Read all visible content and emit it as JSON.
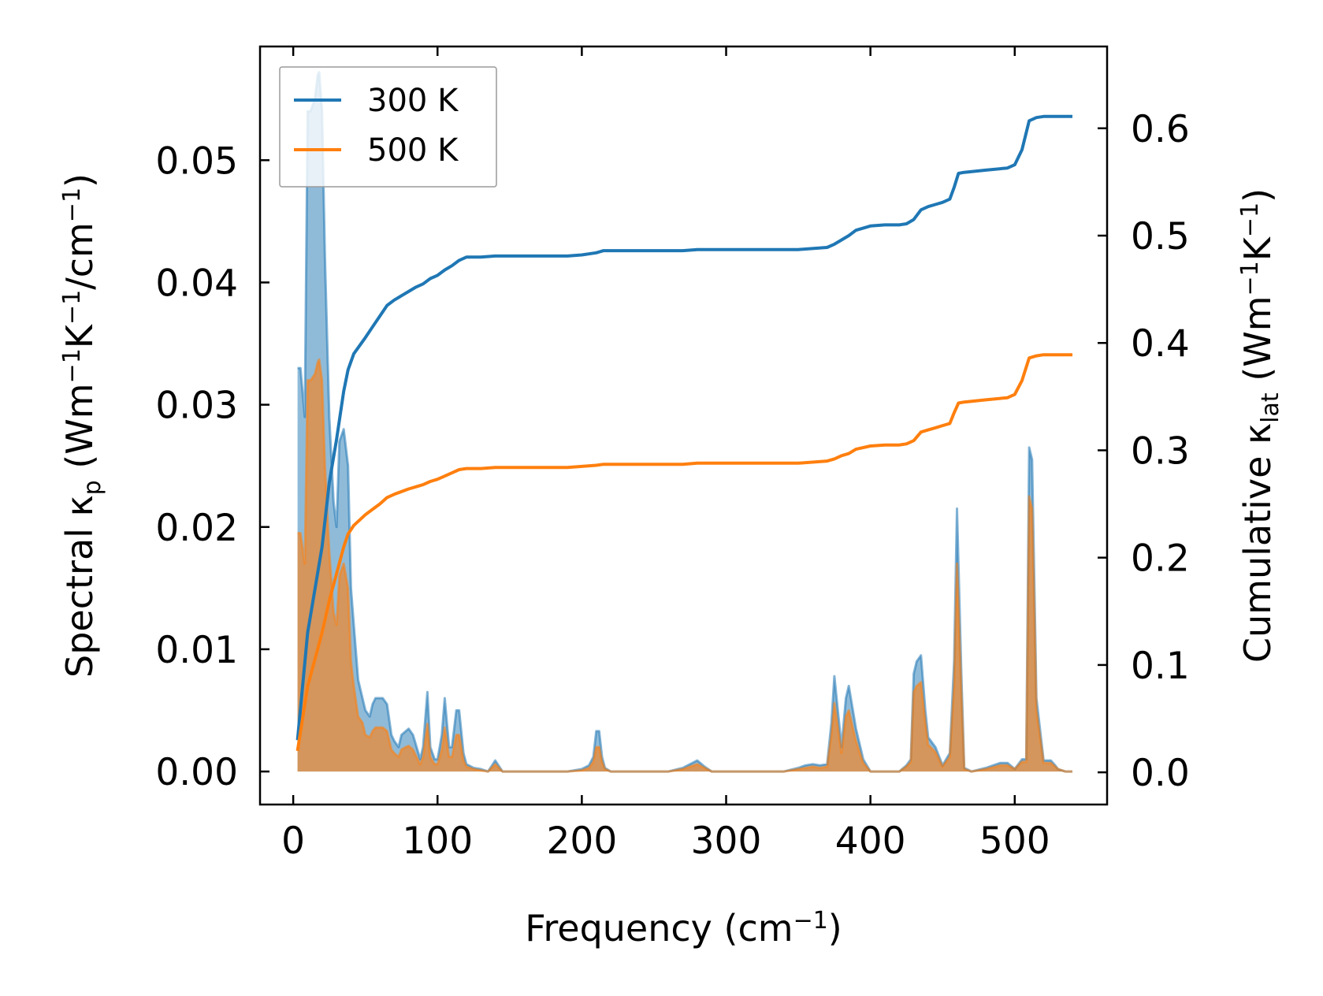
{
  "chart_data": {
    "type": "line",
    "title": "",
    "xlabel": "Frequency (cm",
    "xlabel_sup": "−1",
    "xlabel_end": ")",
    "ylabel_left_parts": [
      "Spectral κ",
      "p",
      " (Wm",
      "−1",
      "K",
      "−1",
      "/cm",
      "−1",
      ")"
    ],
    "ylabel_right_parts": [
      "Cumulative κ",
      "lat",
      " (Wm",
      "−1",
      "K",
      "−1",
      ")"
    ],
    "xlim": [
      -23,
      564
    ],
    "ylim_left": [
      -0.0027,
      0.0593
    ],
    "ylim_right": [
      -0.03,
      0.6762
    ],
    "xticks": [
      0,
      100,
      200,
      300,
      400,
      500
    ],
    "xtick_labels": [
      "0",
      "100",
      "200",
      "300",
      "400",
      "500"
    ],
    "yticks_left": [
      0.0,
      0.01,
      0.02,
      0.03,
      0.04,
      0.05
    ],
    "ytick_left_labels": [
      "0.00",
      "0.01",
      "0.02",
      "0.03",
      "0.04",
      "0.05"
    ],
    "yticks_right": [
      0.0,
      0.1,
      0.2,
      0.3,
      0.4,
      0.5,
      0.6
    ],
    "ytick_right_labels": [
      "0.0",
      "0.1",
      "0.2",
      "0.3",
      "0.4",
      "0.5",
      "0.6"
    ],
    "legend": {
      "position": "top-left",
      "entries": [
        "300 K",
        "500 K"
      ]
    },
    "colors": {
      "300K": "#1f77b4",
      "500K": "#ff7f0e",
      "overlap_fill": "#c49a6c"
    },
    "series_spectral": [
      {
        "name": "300 K",
        "axis": "left",
        "x": [
          3,
          5,
          8,
          10,
          12,
          15,
          17,
          18,
          20,
          22,
          25,
          28,
          30,
          32,
          35,
          38,
          40,
          42,
          45,
          48,
          50,
          53,
          55,
          57,
          60,
          62,
          65,
          68,
          70,
          73,
          75,
          78,
          80,
          83,
          85,
          88,
          90,
          93,
          95,
          98,
          100,
          103,
          105,
          108,
          110,
          113,
          115,
          118,
          120,
          125,
          130,
          135,
          140,
          145,
          150,
          160,
          170,
          180,
          190,
          200,
          205,
          208,
          210,
          212,
          214,
          216,
          220,
          230,
          240,
          250,
          260,
          270,
          275,
          280,
          285,
          290,
          300,
          320,
          340,
          350,
          355,
          360,
          365,
          370,
          373,
          375,
          377,
          380,
          383,
          385,
          390,
          395,
          400,
          410,
          420,
          425,
          428,
          430,
          432,
          435,
          438,
          440,
          445,
          450,
          455,
          458,
          460,
          463,
          465,
          470,
          480,
          490,
          495,
          500,
          505,
          508,
          510,
          512,
          515,
          520,
          525,
          528,
          530,
          535,
          540
        ],
        "y": [
          0.033,
          0.033,
          0.029,
          0.054,
          0.054,
          0.055,
          0.057,
          0.0572,
          0.054,
          0.042,
          0.029,
          0.022,
          0.02,
          0.027,
          0.028,
          0.025,
          0.015,
          0.012,
          0.0075,
          0.006,
          0.005,
          0.0045,
          0.0055,
          0.006,
          0.006,
          0.006,
          0.0055,
          0.003,
          0.0025,
          0.002,
          0.003,
          0.0033,
          0.0035,
          0.003,
          0.0022,
          0.001,
          0.002,
          0.0065,
          0.002,
          0.001,
          0.001,
          0.003,
          0.006,
          0.002,
          0.002,
          0.005,
          0.005,
          0.0015,
          0.0006,
          0.0003,
          0.0002,
          0.0,
          0.0009,
          0.0,
          0.0,
          0.0,
          0.0,
          0.0,
          0.0,
          0.0002,
          0.0005,
          0.0012,
          0.0033,
          0.0033,
          0.0012,
          0.0003,
          0.0,
          0.0,
          0.0,
          0.0,
          0.0,
          0.0003,
          0.0006,
          0.0009,
          0.0004,
          0.0,
          0.0,
          0.0,
          0.0,
          0.0003,
          0.0005,
          0.0006,
          0.0005,
          0.0006,
          0.004,
          0.0078,
          0.0055,
          0.002,
          0.006,
          0.007,
          0.0035,
          0.001,
          0.0,
          0.0,
          0.0,
          0.0005,
          0.001,
          0.008,
          0.009,
          0.0095,
          0.005,
          0.0028,
          0.002,
          0.0005,
          0.0015,
          0.009,
          0.0215,
          0.008,
          0.0003,
          0.0,
          0.0003,
          0.0007,
          0.0007,
          0.0002,
          0.001,
          0.001,
          0.0265,
          0.0255,
          0.006,
          0.0009,
          0.0009,
          0.0005,
          0.0002,
          0.0,
          0.0
        ]
      },
      {
        "name": "500 K",
        "axis": "left",
        "x": [
          3,
          5,
          8,
          10,
          12,
          15,
          17,
          18,
          20,
          22,
          25,
          28,
          30,
          32,
          35,
          38,
          40,
          42,
          45,
          48,
          50,
          53,
          55,
          57,
          60,
          62,
          65,
          68,
          70,
          73,
          75,
          78,
          80,
          83,
          85,
          88,
          90,
          93,
          95,
          98,
          100,
          103,
          105,
          108,
          110,
          113,
          115,
          118,
          120,
          125,
          130,
          135,
          140,
          145,
          150,
          160,
          170,
          180,
          190,
          200,
          205,
          208,
          210,
          212,
          214,
          216,
          220,
          230,
          240,
          250,
          260,
          270,
          275,
          280,
          285,
          290,
          300,
          320,
          340,
          350,
          355,
          360,
          365,
          370,
          373,
          375,
          377,
          380,
          383,
          385,
          390,
          395,
          400,
          410,
          420,
          425,
          428,
          430,
          432,
          435,
          438,
          440,
          445,
          450,
          455,
          458,
          460,
          463,
          465,
          470,
          480,
          490,
          495,
          500,
          505,
          508,
          510,
          512,
          515,
          520,
          525,
          528,
          530,
          535,
          540
        ],
        "y": [
          0.0195,
          0.0195,
          0.017,
          0.032,
          0.032,
          0.0325,
          0.0335,
          0.0337,
          0.032,
          0.025,
          0.018,
          0.013,
          0.012,
          0.016,
          0.017,
          0.015,
          0.009,
          0.007,
          0.0045,
          0.004,
          0.003,
          0.0028,
          0.0033,
          0.0036,
          0.0036,
          0.0036,
          0.0033,
          0.0018,
          0.0015,
          0.0012,
          0.0018,
          0.002,
          0.0021,
          0.0018,
          0.0013,
          0.0006,
          0.0012,
          0.0039,
          0.0012,
          0.0006,
          0.0006,
          0.0018,
          0.0036,
          0.0012,
          0.0012,
          0.003,
          0.003,
          0.0009,
          0.0004,
          0.0002,
          0.0001,
          0.0,
          0.0006,
          0.0,
          0.0,
          0.0,
          0.0,
          0.0,
          0.0,
          0.0001,
          0.0003,
          0.0008,
          0.002,
          0.002,
          0.0008,
          0.0002,
          0.0,
          0.0,
          0.0,
          0.0,
          0.0,
          0.0002,
          0.0004,
          0.0006,
          0.0003,
          0.0,
          0.0,
          0.0,
          0.0,
          0.0002,
          0.0003,
          0.0004,
          0.0003,
          0.0004,
          0.003,
          0.0056,
          0.004,
          0.0015,
          0.0045,
          0.005,
          0.0025,
          0.0007,
          0.0,
          0.0,
          0.0,
          0.0004,
          0.0008,
          0.0065,
          0.007,
          0.0073,
          0.004,
          0.0022,
          0.0016,
          0.0004,
          0.0012,
          0.007,
          0.017,
          0.0065,
          0.0002,
          0.0,
          0.0002,
          0.0005,
          0.0005,
          0.0002,
          0.0008,
          0.0008,
          0.0225,
          0.0215,
          0.005,
          0.0007,
          0.0007,
          0.0004,
          0.0002,
          0.0,
          0.0
        ]
      }
    ],
    "series_cumulative": [
      {
        "name": "300 K",
        "axis": "right",
        "x": [
          3,
          10,
          20,
          25,
          30,
          35,
          38,
          42,
          50,
          55,
          60,
          65,
          70,
          80,
          85,
          90,
          95,
          100,
          105,
          110,
          115,
          120,
          130,
          140,
          150,
          170,
          190,
          200,
          210,
          215,
          250,
          270,
          280,
          300,
          350,
          370,
          375,
          380,
          385,
          390,
          400,
          410,
          420,
          425,
          430,
          435,
          440,
          445,
          450,
          455,
          458,
          461,
          465,
          480,
          495,
          500,
          505,
          510,
          515,
          520,
          530,
          540
        ],
        "y": [
          0.03,
          0.13,
          0.21,
          0.27,
          0.31,
          0.355,
          0.375,
          0.39,
          0.405,
          0.415,
          0.425,
          0.435,
          0.44,
          0.448,
          0.452,
          0.455,
          0.46,
          0.463,
          0.468,
          0.472,
          0.477,
          0.48,
          0.48,
          0.481,
          0.481,
          0.481,
          0.481,
          0.482,
          0.484,
          0.486,
          0.486,
          0.486,
          0.487,
          0.487,
          0.487,
          0.489,
          0.492,
          0.496,
          0.5,
          0.505,
          0.509,
          0.51,
          0.51,
          0.511,
          0.515,
          0.524,
          0.527,
          0.529,
          0.531,
          0.534,
          0.545,
          0.558,
          0.559,
          0.561,
          0.563,
          0.566,
          0.58,
          0.607,
          0.61,
          0.611,
          0.611,
          0.611
        ]
      },
      {
        "name": "500 K",
        "axis": "right",
        "x": [
          3,
          10,
          20,
          25,
          30,
          35,
          38,
          42,
          50,
          55,
          60,
          65,
          70,
          80,
          85,
          90,
          95,
          100,
          105,
          110,
          115,
          120,
          130,
          140,
          150,
          170,
          190,
          200,
          210,
          215,
          250,
          270,
          280,
          300,
          350,
          370,
          375,
          380,
          385,
          390,
          400,
          410,
          420,
          425,
          430,
          435,
          440,
          445,
          450,
          455,
          458,
          461,
          465,
          480,
          495,
          500,
          505,
          510,
          515,
          520,
          530,
          540
        ],
        "y": [
          0.02,
          0.08,
          0.13,
          0.16,
          0.185,
          0.21,
          0.222,
          0.23,
          0.24,
          0.245,
          0.25,
          0.256,
          0.259,
          0.264,
          0.266,
          0.268,
          0.271,
          0.273,
          0.276,
          0.279,
          0.282,
          0.283,
          0.283,
          0.284,
          0.284,
          0.284,
          0.284,
          0.285,
          0.286,
          0.287,
          0.287,
          0.287,
          0.288,
          0.288,
          0.288,
          0.29,
          0.292,
          0.295,
          0.297,
          0.301,
          0.304,
          0.305,
          0.305,
          0.306,
          0.309,
          0.317,
          0.319,
          0.321,
          0.323,
          0.325,
          0.335,
          0.344,
          0.345,
          0.347,
          0.349,
          0.352,
          0.365,
          0.386,
          0.388,
          0.389,
          0.389,
          0.389
        ]
      }
    ]
  }
}
